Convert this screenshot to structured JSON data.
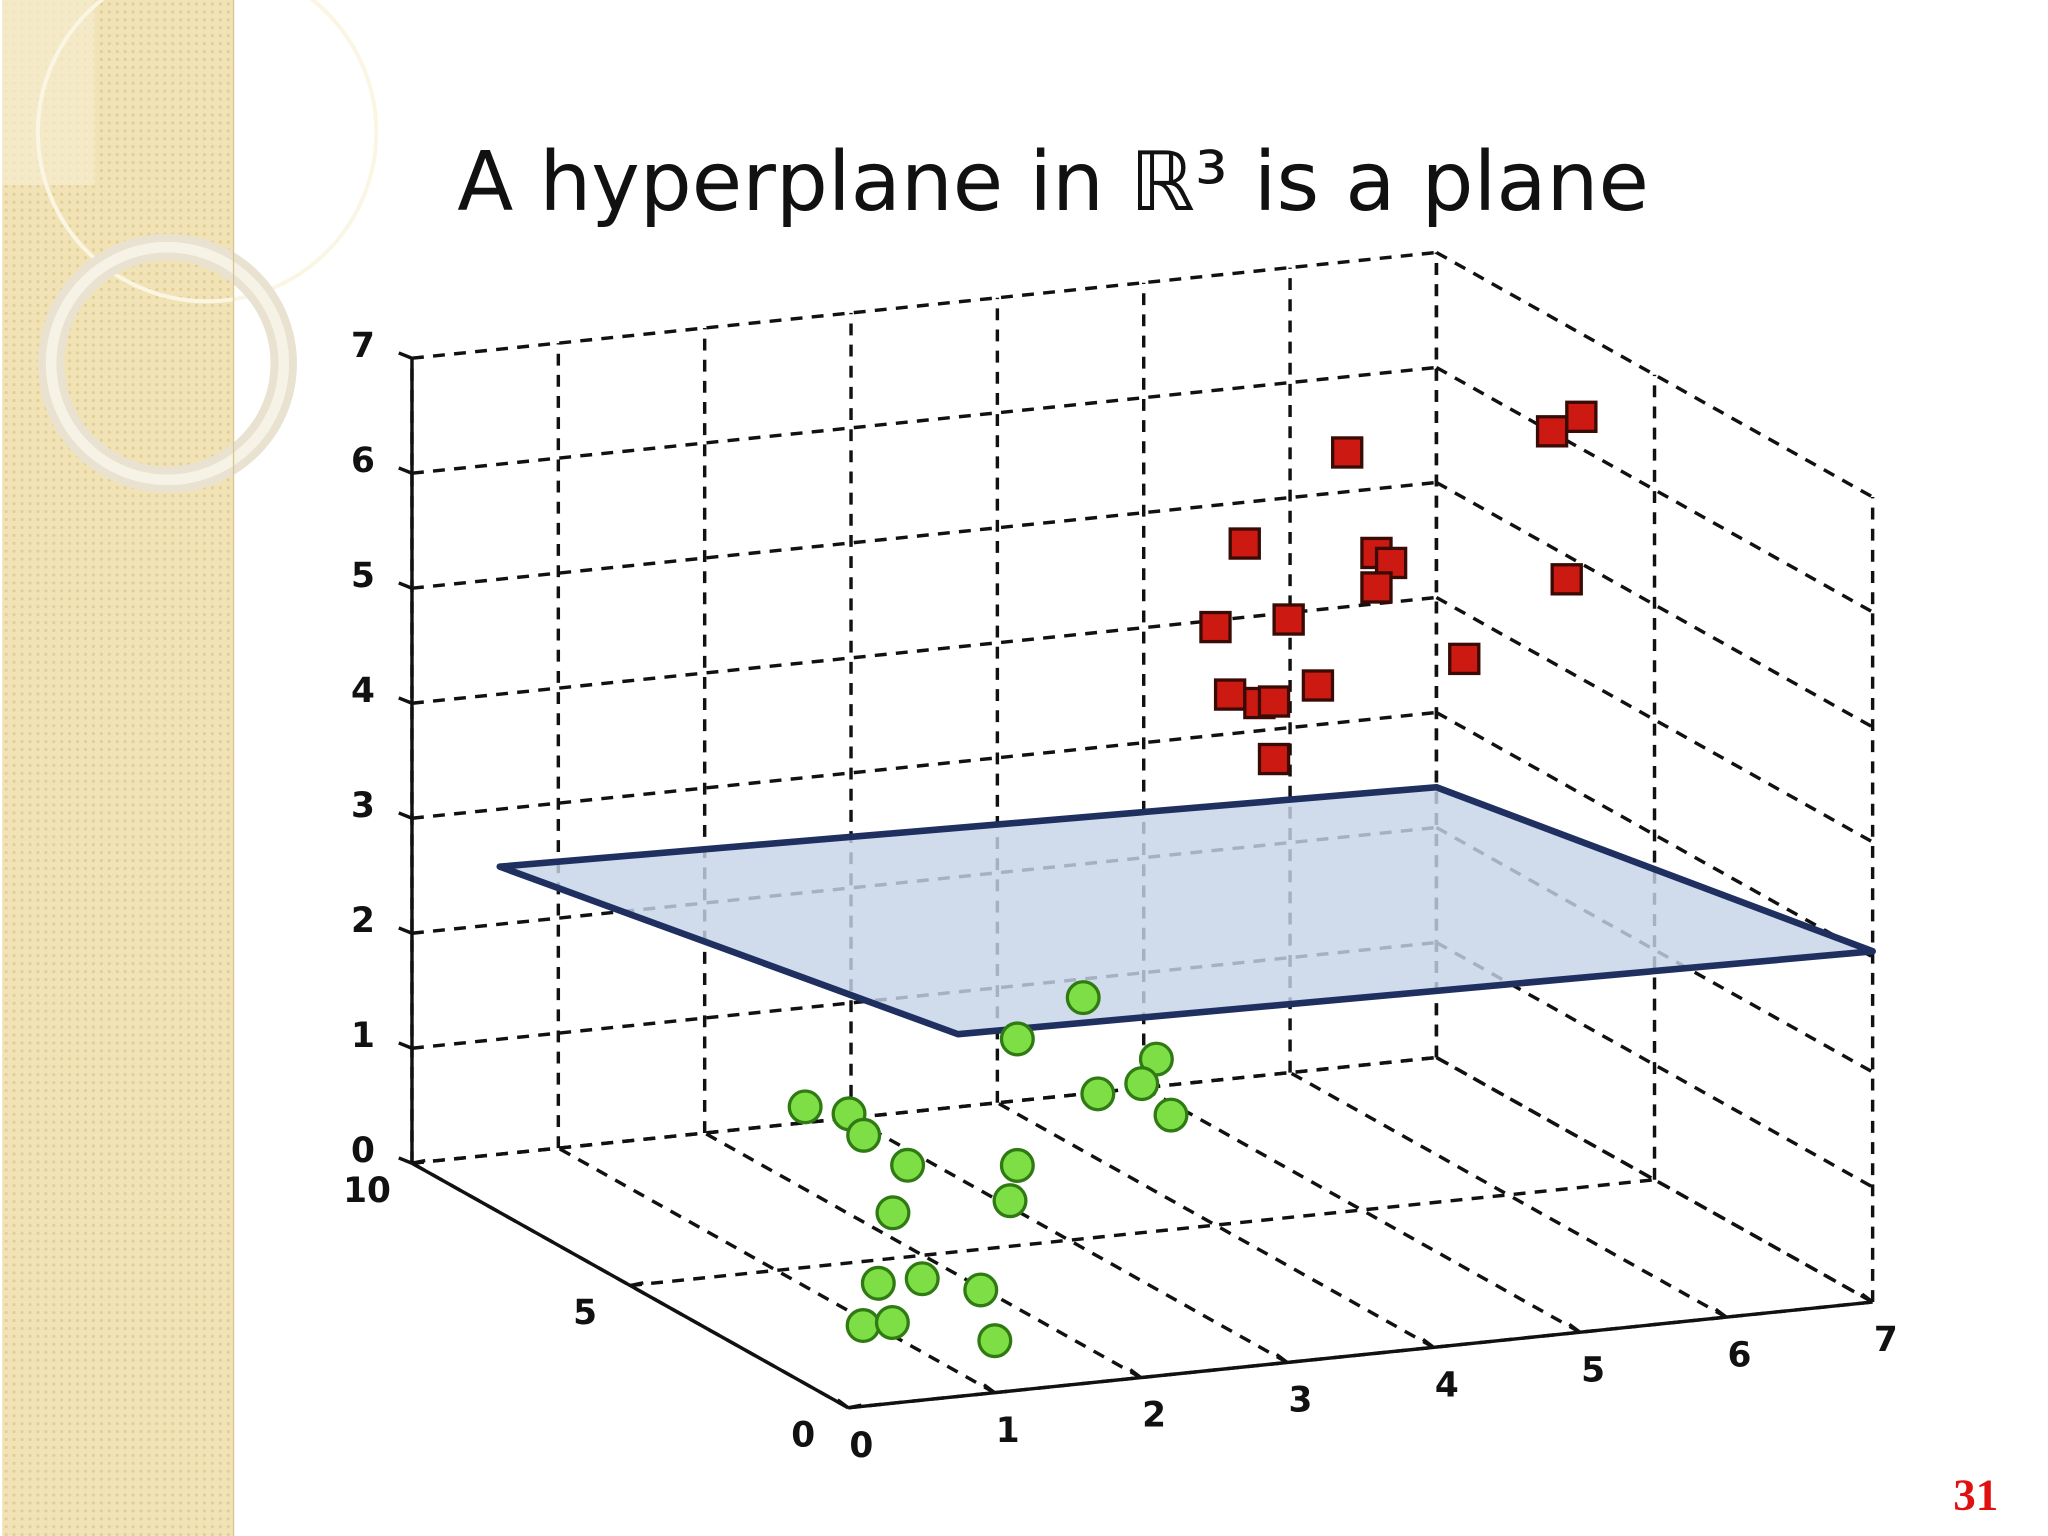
{
  "slide_number": "31",
  "chart_data": {
    "type": "scatter3d",
    "title": "A hyperplane in ℝ³ is a plane",
    "xlim": [
      0,
      7
    ],
    "ylim": [
      0,
      10
    ],
    "zlim": [
      0,
      7
    ],
    "xticks": [
      0,
      1,
      2,
      3,
      4,
      5,
      6,
      7
    ],
    "yticks": [
      0,
      5,
      10
    ],
    "zticks": [
      0,
      1,
      2,
      3,
      4,
      5,
      6,
      7
    ],
    "grid": true,
    "plane": {
      "color": "#c6d4e8",
      "edge_color": "#1f3060",
      "x": [
        0.6,
        7,
        7,
        0.75
      ],
      "y": [
        10,
        10,
        0,
        0
      ],
      "z": [
        2.5,
        2.35,
        3.05,
        3.15
      ]
    },
    "series": [
      {
        "marker": "square",
        "color": "#cc1a12",
        "x": [
          4.9,
          6.3,
          6.5,
          4.2,
          5.1,
          5.2,
          5.1,
          6.4,
          4.0,
          4.5,
          5.7,
          4.1,
          4.3,
          4.4,
          4.7,
          4.4
        ],
        "y": [
          5,
          5,
          5,
          5,
          5,
          5,
          5,
          5,
          5,
          5,
          5,
          5,
          5,
          5,
          5,
          5
        ],
        "z": [
          6.6,
          6.6,
          6.7,
          5.9,
          5.7,
          5.6,
          5.4,
          5.3,
          5.2,
          5.2,
          4.7,
          4.6,
          4.5,
          4.5,
          4.6,
          4.0
        ]
      },
      {
        "marker": "circle",
        "color": "#7ede45",
        "x": [
          2.5,
          2.05,
          3.0,
          2.9,
          2.6,
          3.1,
          0.6,
          0.9,
          1.0,
          1.3,
          2.05,
          2.0,
          1.2,
          1.4,
          1.1,
          1.8,
          0.4,
          0.6,
          1.3
        ],
        "y": [
          3,
          3,
          3,
          3,
          3,
          3,
          3,
          3,
          3,
          3,
          3,
          3,
          3,
          3,
          3,
          3,
          1,
          1,
          1
        ],
        "z": [
          2.6,
          2.3,
          2.0,
          1.8,
          1.75,
          1.5,
          1.9,
          1.8,
          1.6,
          1.3,
          1.2,
          0.9,
          0.9,
          0.3,
          0.3,
          0.15,
          0.45,
          0.45,
          0.2
        ]
      }
    ]
  }
}
